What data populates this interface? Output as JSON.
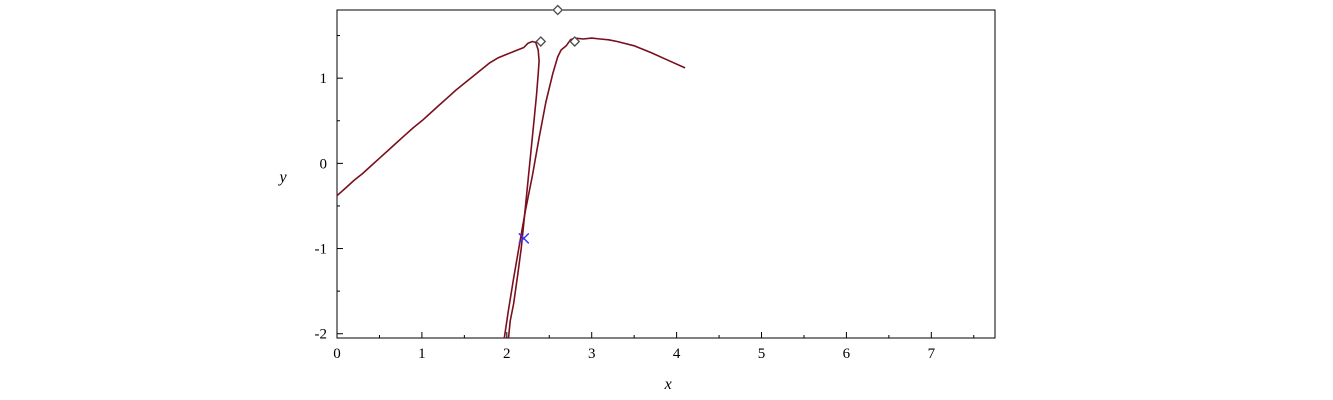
{
  "chart_data": {
    "type": "line",
    "title": "",
    "xlabel": "x",
    "ylabel": "y",
    "xlim": [
      0,
      7.75
    ],
    "ylim": [
      -2.05,
      1.8
    ],
    "x_ticks": [
      0,
      1,
      2,
      3,
      4,
      5,
      6,
      7
    ],
    "x_tick_labels": [
      "0",
      "1",
      "2",
      "3",
      "4",
      "5",
      "6",
      "7"
    ],
    "y_ticks": [
      -2,
      -1,
      0,
      1
    ],
    "y_tick_labels": [
      "-2",
      "-1",
      "0",
      "1"
    ],
    "grid": false,
    "colors": {
      "curve": "#7a0f1e",
      "marker": "#4d4d4d",
      "cross": "#3333ff"
    },
    "series": [
      {
        "points": [
          [
            0.0,
            -0.38
          ],
          [
            0.1,
            -0.29
          ],
          [
            0.2,
            -0.2
          ],
          [
            0.3,
            -0.12
          ],
          [
            0.4,
            -0.03
          ],
          [
            0.5,
            0.06
          ],
          [
            0.6,
            0.15
          ],
          [
            0.7,
            0.24
          ],
          [
            0.8,
            0.33
          ],
          [
            0.9,
            0.42
          ],
          [
            1.0,
            0.5
          ],
          [
            1.1,
            0.59
          ],
          [
            1.2,
            0.68
          ],
          [
            1.3,
            0.77
          ],
          [
            1.4,
            0.86
          ],
          [
            1.5,
            0.94
          ],
          [
            1.6,
            1.02
          ],
          [
            1.7,
            1.1
          ],
          [
            1.8,
            1.18
          ],
          [
            1.9,
            1.24
          ],
          [
            2.0,
            1.28
          ],
          [
            2.1,
            1.32
          ],
          [
            2.2,
            1.36
          ],
          [
            2.25,
            1.41
          ],
          [
            2.3,
            1.43
          ],
          [
            2.34,
            1.42
          ],
          [
            2.37,
            1.33
          ],
          [
            2.38,
            1.2
          ],
          [
            2.37,
            1.05
          ],
          [
            2.35,
            0.8
          ],
          [
            2.32,
            0.5
          ],
          [
            2.28,
            0.1
          ],
          [
            2.24,
            -0.3
          ],
          [
            2.2,
            -0.7
          ],
          [
            2.17,
            -1.0
          ],
          [
            2.13,
            -1.3
          ],
          [
            2.08,
            -1.65
          ],
          [
            2.04,
            -1.85
          ],
          [
            2.02,
            -2.05
          ]
        ]
      },
      {
        "points": [
          [
            1.97,
            -2.05
          ],
          [
            2.02,
            -1.72
          ],
          [
            2.08,
            -1.35
          ],
          [
            2.15,
            -0.95
          ],
          [
            2.22,
            -0.55
          ],
          [
            2.3,
            -0.15
          ],
          [
            2.38,
            0.3
          ],
          [
            2.46,
            0.72
          ],
          [
            2.54,
            1.05
          ],
          [
            2.6,
            1.25
          ],
          [
            2.64,
            1.33
          ],
          [
            2.7,
            1.38
          ],
          [
            2.75,
            1.45
          ],
          [
            2.8,
            1.47
          ],
          [
            2.9,
            1.46
          ],
          [
            3.0,
            1.47
          ],
          [
            3.1,
            1.46
          ],
          [
            3.2,
            1.45
          ],
          [
            3.3,
            1.43
          ],
          [
            3.5,
            1.38
          ],
          [
            3.7,
            1.3
          ],
          [
            3.9,
            1.21
          ],
          [
            4.1,
            1.12
          ]
        ]
      }
    ],
    "markers": [
      {
        "x": 2.6,
        "y": 1.8,
        "symbol": "diamond"
      },
      {
        "x": 2.4,
        "y": 1.43,
        "symbol": "diamond"
      },
      {
        "x": 2.8,
        "y": 1.43,
        "symbol": "diamond"
      },
      {
        "x": 2.2,
        "y": -0.88,
        "symbol": "cross"
      }
    ]
  }
}
